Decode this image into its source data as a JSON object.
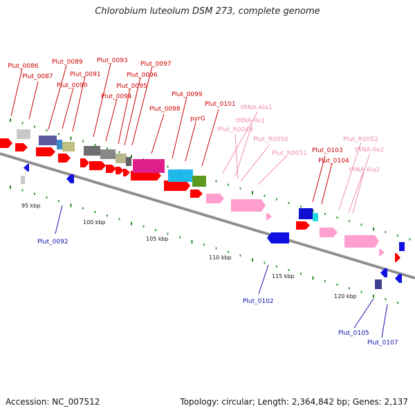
{
  "title": "Chlorobium luteolum DSM 273, complete genome",
  "footer": {
    "accession": "Accession: NC_007512",
    "summary": "Topology: circular; Length: 2,364,842 bp; Genes: 2,137"
  },
  "colors": {
    "label_red": "#cc0000",
    "label_pink": "#ee8fb0",
    "label_blue": "#1010aa",
    "cds_red": "#ff0000",
    "trna_pink": "#ff9fcf",
    "cds_blue": "#1010e0",
    "backbone": "#888888",
    "tick_green": "#2a8a2a"
  },
  "kbp_ticks": [
    "95 kbp",
    "100 kbp",
    "105 kbp",
    "110 kbp",
    "115 kbp",
    "120 kbp"
  ],
  "labels_top": [
    {
      "text": "Plut_0086",
      "type": "red"
    },
    {
      "text": "Plut_0087",
      "type": "red"
    },
    {
      "text": "Plut_0089",
      "type": "red"
    },
    {
      "text": "Plut_0090",
      "type": "red"
    },
    {
      "text": "Plut_0091",
      "type": "red"
    },
    {
      "text": "Plut_0093",
      "type": "red"
    },
    {
      "text": "Plut_0094",
      "type": "red"
    },
    {
      "text": "Plut_0095",
      "type": "red"
    },
    {
      "text": "Plut_0096",
      "type": "red"
    },
    {
      "text": "Plut_0097",
      "type": "red"
    },
    {
      "text": "Plut_0098",
      "type": "red"
    },
    {
      "text": "Plut_0099",
      "type": "red"
    },
    {
      "text": "pyrG",
      "type": "red"
    },
    {
      "text": "Plut_0101",
      "type": "red"
    },
    {
      "text": "tRNA-Ala1",
      "type": "pink"
    },
    {
      "text": "tRNA-Ile1",
      "type": "pink"
    },
    {
      "text": "Plut_R0049",
      "type": "pink"
    },
    {
      "text": "Plut_R0050",
      "type": "pink"
    },
    {
      "text": "Plut_R0051",
      "type": "pink"
    },
    {
      "text": "Plut_0103",
      "type": "red"
    },
    {
      "text": "Plut_0104",
      "type": "red"
    },
    {
      "text": "Plut_R0052",
      "type": "pink"
    },
    {
      "text": "tRNA-Ile2",
      "type": "pink"
    },
    {
      "text": "tRNA-Ala2",
      "type": "pink"
    }
  ],
  "labels_bottom": [
    {
      "text": "Plut_0092",
      "type": "blue"
    },
    {
      "text": "Plut_0102",
      "type": "blue"
    },
    {
      "text": "Plut_0105",
      "type": "blue"
    },
    {
      "text": "Plut_0107",
      "type": "blue"
    }
  ]
}
